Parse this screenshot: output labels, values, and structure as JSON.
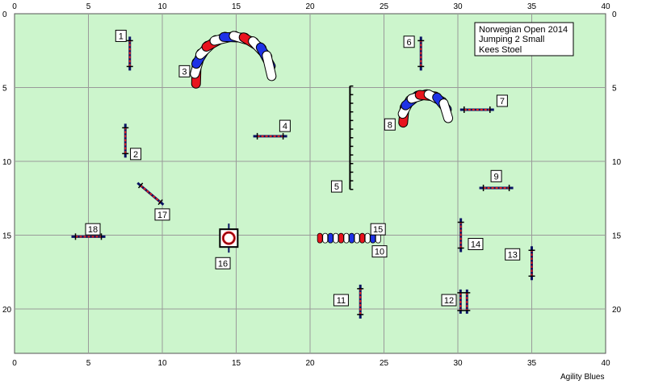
{
  "info": {
    "event": "Norwegian Open 2014",
    "class": "Jumping 2 Small",
    "judge": "Kees Stoel"
  },
  "credit": "Agility Blues",
  "axes": {
    "x_ticks": [
      "0",
      "5",
      "10",
      "15",
      "20",
      "25",
      "30",
      "35",
      "40"
    ],
    "y_ticks": [
      "0",
      "5",
      "10",
      "15",
      "20"
    ],
    "x_range": [
      0,
      40
    ],
    "y_range": [
      0,
      23
    ]
  },
  "numbers": [
    "1",
    "2",
    "3",
    "4",
    "5",
    "6",
    "7",
    "8",
    "9",
    "10",
    "11",
    "12",
    "13",
    "14",
    "15",
    "16",
    "17",
    "18"
  ],
  "obstacles": [
    {
      "type": "jump",
      "x": 7.8,
      "y": 2.7,
      "angle": 90
    },
    {
      "type": "jump",
      "x": 7.5,
      "y": 8.6,
      "angle": 90
    },
    {
      "type": "tunnel",
      "x": 14.8,
      "y": 4.1,
      "r": 2.6,
      "dir": "up"
    },
    {
      "type": "jump",
      "x": 17.3,
      "y": 8.3,
      "angle": 0
    },
    {
      "type": "weave",
      "x": 22.7,
      "y1": 4.9,
      "y2": 11.9
    },
    {
      "type": "jump",
      "x": 27.5,
      "y": 2.7,
      "angle": 90
    },
    {
      "type": "jump",
      "x": 31.3,
      "y": 6.5,
      "angle": 0
    },
    {
      "type": "tunnel",
      "x": 27.8,
      "y": 7.0,
      "r": 1.55,
      "dir": "up"
    },
    {
      "type": "jump",
      "x": 32.6,
      "y": 11.8,
      "angle": 0
    },
    {
      "type": "tunnel_straight",
      "x1": 20.5,
      "x2": 24.8,
      "y": 15.2
    },
    {
      "type": "jump",
      "x": 23.4,
      "y": 19.5,
      "angle": 90
    },
    {
      "type": "double",
      "x": 30.4,
      "y": 19.5
    },
    {
      "type": "jump",
      "x": 35.0,
      "y": 16.9,
      "angle": 90
    },
    {
      "type": "jump",
      "x": 30.2,
      "y": 15.0,
      "angle": 90
    },
    {
      "type": "tyre",
      "x": 14.5,
      "y": 15.2
    },
    {
      "type": "jump",
      "x": 9.2,
      "y": 12.2,
      "angle": -40
    },
    {
      "type": "jump",
      "x": 5.0,
      "y": 15.1,
      "angle": 0
    }
  ],
  "number_labels": [
    {
      "n": "1",
      "x": 7.2,
      "y": 1.5
    },
    {
      "n": "2",
      "x": 8.2,
      "y": 9.5
    },
    {
      "n": "3",
      "x": 11.5,
      "y": 3.9
    },
    {
      "n": "4",
      "x": 18.3,
      "y": 7.6
    },
    {
      "n": "5",
      "x": 21.8,
      "y": 11.7
    },
    {
      "n": "6",
      "x": 26.7,
      "y": 1.9
    },
    {
      "n": "7",
      "x": 33.0,
      "y": 5.9
    },
    {
      "n": "8",
      "x": 25.4,
      "y": 7.5
    },
    {
      "n": "9",
      "x": 32.6,
      "y": 11.0
    },
    {
      "n": "10",
      "x": 24.7,
      "y": 16.1
    },
    {
      "n": "11",
      "x": 22.1,
      "y": 19.4
    },
    {
      "n": "12",
      "x": 29.4,
      "y": 19.4
    },
    {
      "n": "13",
      "x": 33.7,
      "y": 16.3
    },
    {
      "n": "14",
      "x": 31.2,
      "y": 15.6
    },
    {
      "n": "15",
      "x": 24.6,
      "y": 14.6
    },
    {
      "n": "16",
      "x": 14.1,
      "y": 16.9
    },
    {
      "n": "17",
      "x": 10.0,
      "y": 13.6
    },
    {
      "n": "18",
      "x": 5.3,
      "y": 14.6
    }
  ],
  "colors": {
    "field": "#ccf5cc",
    "grid": "#9a9a9a",
    "pole": "#0a1464",
    "bar_red": "#e02020",
    "tunnel_red": "#e8141e",
    "tunnel_blue": "#1e32e6"
  }
}
